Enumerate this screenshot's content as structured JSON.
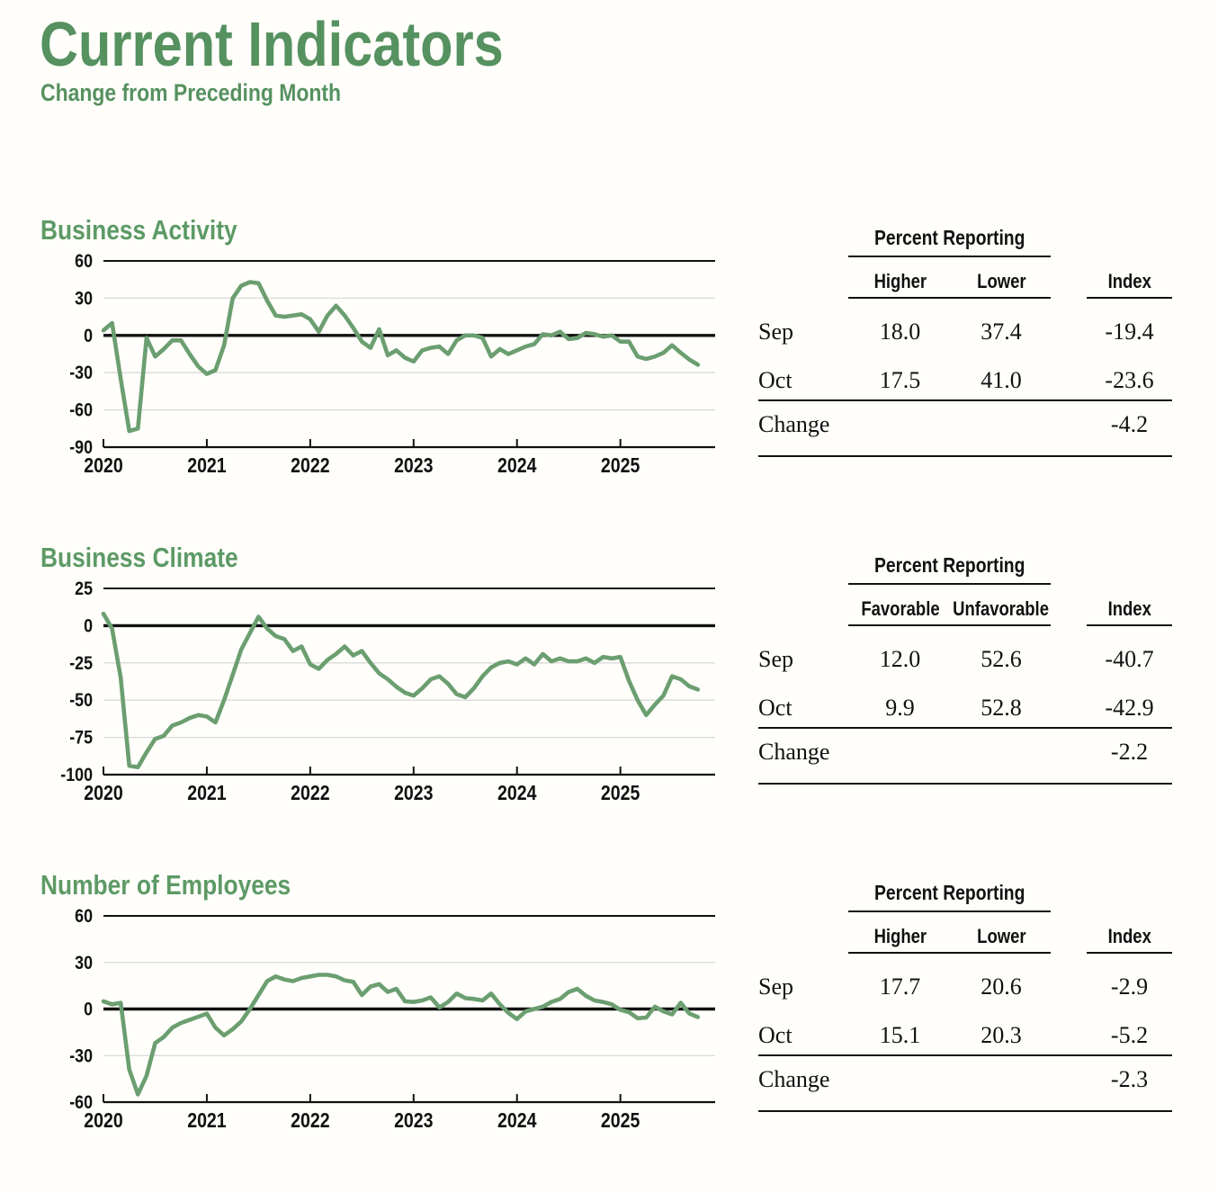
{
  "page": {
    "title": "Current Indicators",
    "subtitle": "Change from Preceding Month"
  },
  "colors": {
    "heading_green": "#569160",
    "section_green": "#5d9a66",
    "line_green": "#6b9e70",
    "grid_gray": "#d9d9d9",
    "axis_black": "#111111",
    "background": "#fffefa"
  },
  "tables": [
    {
      "group_header": "Percent Reporting",
      "columns": [
        "Higher",
        "Lower",
        "Index"
      ],
      "rows": [
        {
          "label": "Sep",
          "cells": [
            "18.0",
            "37.4",
            "-19.4"
          ]
        },
        {
          "label": "Oct",
          "cells": [
            "17.5",
            "41.0",
            "-23.6"
          ]
        }
      ],
      "change": {
        "label": "Change",
        "value": "-4.2"
      }
    },
    {
      "group_header": "Percent Reporting",
      "columns": [
        "Favorable",
        "Unfavorable",
        "Index"
      ],
      "rows": [
        {
          "label": "Sep",
          "cells": [
            "12.0",
            "52.6",
            "-40.7"
          ]
        },
        {
          "label": "Oct",
          "cells": [
            "9.9",
            "52.8",
            "-42.9"
          ]
        }
      ],
      "change": {
        "label": "Change",
        "value": "-2.2"
      }
    },
    {
      "group_header": "Percent Reporting",
      "columns": [
        "Higher",
        "Lower",
        "Index"
      ],
      "rows": [
        {
          "label": "Sep",
          "cells": [
            "17.7",
            "20.6",
            "-2.9"
          ]
        },
        {
          "label": "Oct",
          "cells": [
            "15.1",
            "20.3",
            "-5.2"
          ]
        }
      ],
      "change": {
        "label": "Change",
        "value": "-2.3"
      }
    }
  ],
  "chart_data": [
    {
      "type": "line",
      "title": "Business Activity",
      "frequency": "monthly",
      "x_start": "2020-01",
      "x_end": "2025-10",
      "x_tick_labels": [
        "2020",
        "2021",
        "2022",
        "2023",
        "2024",
        "2025"
      ],
      "ylim": [
        -90,
        60
      ],
      "yticks": [
        60,
        30,
        0,
        -30,
        -60,
        -90
      ],
      "grid": true,
      "legend": "none",
      "values": [
        4,
        10,
        -35,
        -77,
        -75,
        -2,
        -17,
        -11,
        -4,
        -4,
        -15,
        -25,
        -31,
        -28,
        -8,
        30,
        40,
        43,
        42,
        28,
        16,
        15,
        16,
        17,
        13,
        3,
        16,
        24,
        16,
        6,
        -5,
        -10,
        5,
        -16,
        -12,
        -18,
        -21,
        -12,
        -10,
        -9,
        -15,
        -4,
        0,
        0,
        -2,
        -17,
        -11,
        -15,
        -12,
        -9,
        -7,
        1,
        0,
        3,
        -3,
        -2,
        2,
        1,
        -1,
        0,
        -5,
        -5,
        -17,
        -19,
        -17,
        -14,
        -8,
        -14,
        -19.4,
        -23.6
      ]
    },
    {
      "type": "line",
      "title": "Business Climate",
      "frequency": "monthly",
      "x_start": "2020-01",
      "x_end": "2025-10",
      "x_tick_labels": [
        "2020",
        "2021",
        "2022",
        "2023",
        "2024",
        "2025"
      ],
      "ylim": [
        -100,
        25
      ],
      "yticks": [
        25,
        0,
        -25,
        -50,
        -75,
        -100
      ],
      "grid": true,
      "legend": "none",
      "values": [
        8,
        -2,
        -35,
        -94,
        -95,
        -85,
        -76,
        -74,
        -67,
        -65,
        -62,
        -60,
        -61,
        -65,
        -50,
        -33,
        -16,
        -5,
        6,
        -2,
        -7,
        -9,
        -17,
        -14,
        -26,
        -29,
        -23,
        -19,
        -14,
        -20,
        -17,
        -25,
        -32,
        -36,
        -41,
        -45,
        -47,
        -42,
        -36,
        -34,
        -39,
        -46,
        -48,
        -42,
        -34,
        -28,
        -25,
        -24,
        -26,
        -22,
        -26,
        -19,
        -24,
        -22,
        -24,
        -24,
        -22,
        -25,
        -21,
        -22,
        -21,
        -37,
        -50,
        -60,
        -53,
        -47,
        -34,
        -36,
        -40.7,
        -42.9
      ]
    },
    {
      "type": "line",
      "title": "Number of Employees",
      "frequency": "monthly",
      "x_start": "2020-01",
      "x_end": "2025-10",
      "x_tick_labels": [
        "2020",
        "2021",
        "2022",
        "2023",
        "2024",
        "2025"
      ],
      "ylim": [
        -60,
        60
      ],
      "yticks": [
        60,
        30,
        0,
        -30,
        -60
      ],
      "grid": true,
      "legend": "none",
      "values": [
        5,
        3,
        4,
        -39,
        -55,
        -43,
        -22,
        -18,
        -12,
        -9,
        -7,
        -5,
        -3,
        -12,
        -17,
        -13,
        -8,
        0,
        9,
        18,
        21,
        19,
        18,
        20,
        21,
        22,
        22,
        21,
        18.5,
        17.5,
        9,
        14.5,
        16,
        11,
        13,
        5,
        4.5,
        5.5,
        7.5,
        1,
        4.5,
        10,
        7,
        6.5,
        5.5,
        10,
        3,
        -2.5,
        -6.5,
        -1.5,
        0,
        1.5,
        4.5,
        6.5,
        11,
        13,
        8.5,
        5.5,
        4.5,
        3,
        -0.5,
        -2,
        -6,
        -5.5,
        1.5,
        -1.5,
        -3.5,
        4,
        -2.9,
        -5.2
      ]
    }
  ]
}
